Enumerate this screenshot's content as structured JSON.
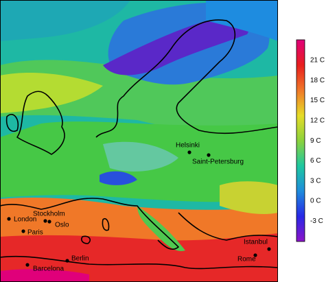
{
  "colorbar": {
    "ticks": [
      "21 C",
      "18 C",
      "15 C",
      "12 C",
      "9 C",
      "6 C",
      "3 C",
      "0 C",
      "-3 C"
    ],
    "colors": [
      "#e0007a",
      "#e81e1e",
      "#f07828",
      "#e6dc28",
      "#8cd23c",
      "#1ec8a0",
      "#1e8cdc",
      "#2828e6",
      "#8c14c8"
    ]
  },
  "cities": [
    "Helsinki",
    "Saint-Petersburg",
    "Stockholm",
    "Oslo",
    "London",
    "Paris",
    "Barcelona",
    "Berlin",
    "Istanbul",
    "Rome"
  ]
}
